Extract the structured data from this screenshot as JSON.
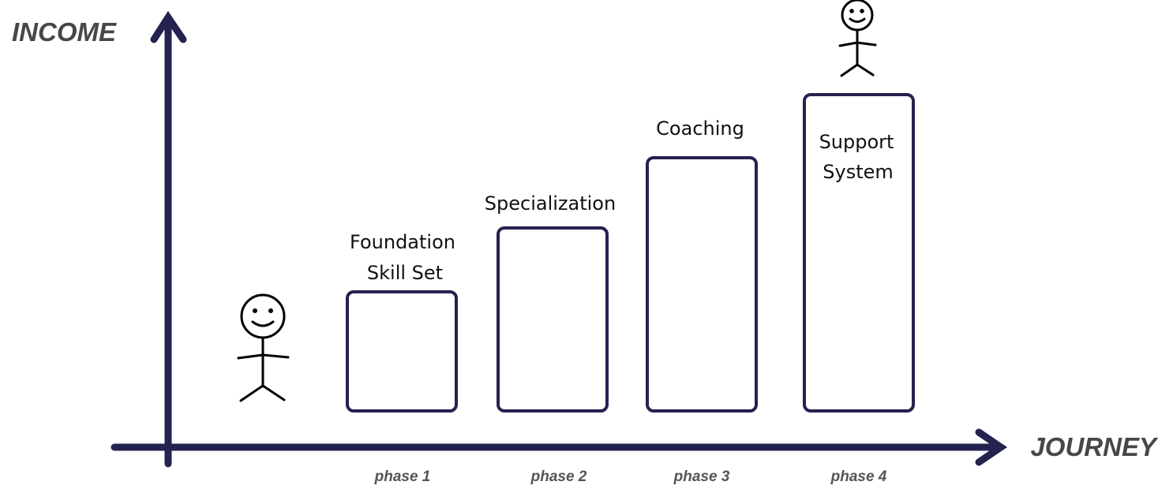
{
  "axes": {
    "y_label": "INCOME",
    "x_label": "JOURNEY",
    "color": "#24224f"
  },
  "steps": [
    {
      "lines": [
        "Foundation",
        "Skill Set"
      ],
      "phase": "phase 1"
    },
    {
      "lines": [
        "Specialization"
      ],
      "phase": "phase 2"
    },
    {
      "lines": [
        "Coaching"
      ],
      "phase": "phase 3"
    },
    {
      "lines": [
        "Support",
        "System"
      ],
      "phase": "phase 4"
    }
  ],
  "figures": [
    "stick-figure-start",
    "stick-figure-top"
  ]
}
